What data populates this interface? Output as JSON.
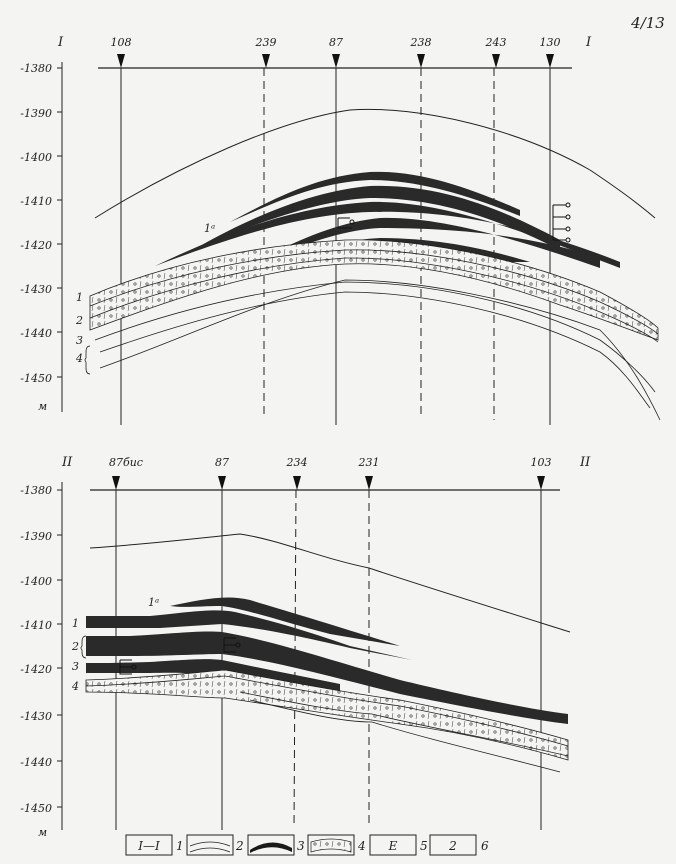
{
  "page_number": "4/13",
  "sections": [
    {
      "id": "I",
      "left_label": "I",
      "right_label": "I",
      "depth_ticks": [
        "-1380",
        "-1390",
        "-1400",
        "-1410",
        "-1420",
        "-1430",
        "-1440",
        "-1450"
      ],
      "unit": "м",
      "wells": [
        {
          "name": "108",
          "style": "solid"
        },
        {
          "name": "239",
          "style": "dashed"
        },
        {
          "name": "87",
          "style": "solid"
        },
        {
          "name": "238",
          "style": "dashed"
        },
        {
          "name": "243",
          "style": "dashed"
        },
        {
          "name": "130",
          "style": "solid"
        }
      ],
      "layer_labels": [
        "1ᵃ",
        "1",
        "2",
        "3",
        "4"
      ]
    },
    {
      "id": "II",
      "left_label": "II",
      "right_label": "II",
      "depth_ticks": [
        "-1380",
        "-1390",
        "-1400",
        "-1410",
        "-1420",
        "-1430",
        "-1440",
        "-1450"
      ],
      "unit": "м",
      "wells": [
        {
          "name": "87бис",
          "style": "solid"
        },
        {
          "name": "87",
          "style": "solid"
        },
        {
          "name": "234",
          "style": "dashed"
        },
        {
          "name": "231",
          "style": "dashed"
        },
        {
          "name": "103",
          "style": "solid"
        }
      ],
      "layer_labels": [
        "1ᵃ",
        "1",
        "2",
        "3",
        "4"
      ]
    }
  ],
  "legend": [
    {
      "symbol": "section-line",
      "glyph": "I—I",
      "number": "1"
    },
    {
      "symbol": "boundary-lines",
      "number": "2"
    },
    {
      "symbol": "dark-bed",
      "number": "3"
    },
    {
      "symbol": "porous-bed",
      "number": "4"
    },
    {
      "symbol": "perforation",
      "glyph": "E",
      "number": "5"
    },
    {
      "symbol": "bed-index-box",
      "glyph": "2",
      "number": "6"
    }
  ]
}
